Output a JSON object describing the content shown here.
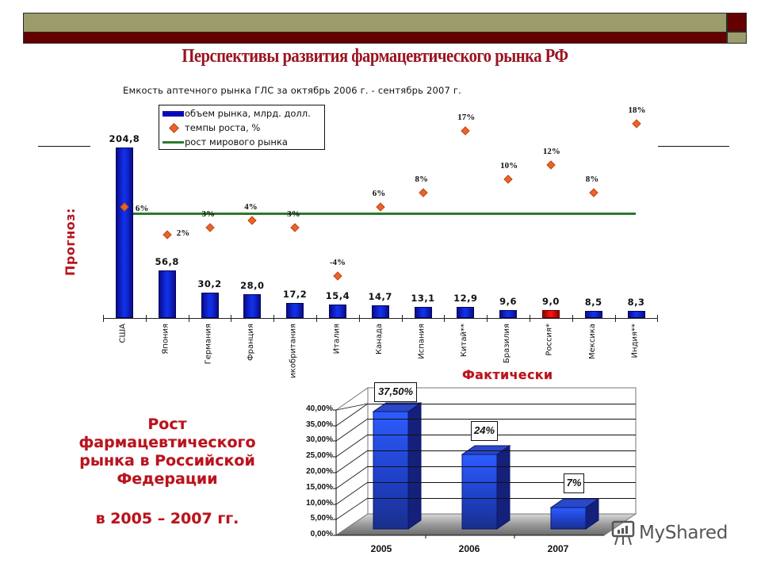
{
  "header": {
    "title": "Перспективы развития фармацевтического рынка РФ",
    "colors": {
      "olive": "#9c9b6c",
      "maroon": "#650000",
      "title_red": "#9b1420"
    }
  },
  "top_chart": {
    "subtitle": "Емкость аптечного рынка ГЛС за октябрь 2006 г. - сентябрь 2007 г.",
    "side_label": "Прогноз:",
    "legend": {
      "bar": "объем рынка, млрд. долл.",
      "marker": "темпы роста, %",
      "line": "рост мирового рынка"
    },
    "categories": [
      "США",
      "Япония",
      "Германия",
      "Франция",
      "икобритания",
      "Италия",
      "Канада",
      "Испания",
      "Китай**",
      "Бразилия",
      "Россия*",
      "Мексика",
      "Индия**"
    ],
    "bar_labels": [
      "204,8",
      "56,8",
      "30,2",
      "28,0",
      "17,2",
      "15,4",
      "14,7",
      "13,1",
      "12,9",
      "9,6",
      "9,0",
      "8,5",
      "8,3"
    ],
    "growth_labels": [
      "6%",
      "2%",
      "3%",
      "4%",
      "3%",
      "-4%",
      "6%",
      "8%",
      "17%",
      "10%",
      "12%",
      "8%",
      "18%"
    ]
  },
  "bottom_chart": {
    "label": "Фактически",
    "y_ticks": [
      "40,00%",
      "35,00%",
      "30,00%",
      "25,00%",
      "20,00%",
      "15,00%",
      "10,00%",
      "5,00%",
      "0,00%"
    ],
    "years": [
      "2005",
      "2006",
      "2007"
    ],
    "annotations": [
      "37,50%",
      "24%",
      "7%"
    ]
  },
  "left_text": {
    "lines": [
      "Рост",
      "фармацевтического",
      "рынка в Российской",
      "Федерации"
    ],
    "years": "в 2005 – 2007 гг."
  },
  "watermark": "MyShared",
  "chart_data": [
    {
      "type": "bar",
      "title": "Емкость аптечного рынка ГЛС за октябрь 2006 г. - сентябрь 2007 г.",
      "categories": [
        "США",
        "Япония",
        "Германия",
        "Франция",
        "Великобритания",
        "Италия",
        "Канада",
        "Испания",
        "Китай**",
        "Бразилия",
        "Россия*",
        "Мексика",
        "Индия**"
      ],
      "series": [
        {
          "name": "объем рынка, млрд. долл.",
          "type": "bar",
          "values": [
            204.8,
            56.8,
            30.2,
            28.0,
            17.2,
            15.4,
            14.7,
            13.1,
            12.9,
            9.6,
            9.0,
            8.5,
            8.3
          ],
          "highlight": {
            "Россия*": "#e00000"
          }
        },
        {
          "name": "темпы роста, %",
          "type": "scatter",
          "values": [
            6,
            2,
            3,
            4,
            3,
            -4,
            6,
            8,
            17,
            10,
            12,
            8,
            18
          ]
        },
        {
          "name": "рост мирового рынка",
          "type": "line",
          "values": [
            6,
            6,
            6,
            6,
            6,
            6,
            6,
            6,
            6,
            6,
            6,
            6,
            6
          ]
        }
      ],
      "side_annotation": "Прогноз:",
      "legend_position": "top-left",
      "grid": false
    },
    {
      "type": "bar",
      "style": "3d",
      "title": "Рост фармацевтического рынка в Российской Федерации в 2005 – 2007 гг.",
      "subtitle": "Фактически",
      "categories": [
        "2005",
        "2006",
        "2007"
      ],
      "values": [
        37.5,
        24,
        7
      ],
      "value_labels": [
        "37,50%",
        "24%",
        "7%"
      ],
      "ylabel": "",
      "ylim": [
        0,
        40
      ],
      "y_ticks": [
        0,
        5,
        10,
        15,
        20,
        25,
        30,
        35,
        40
      ],
      "grid": true
    }
  ]
}
